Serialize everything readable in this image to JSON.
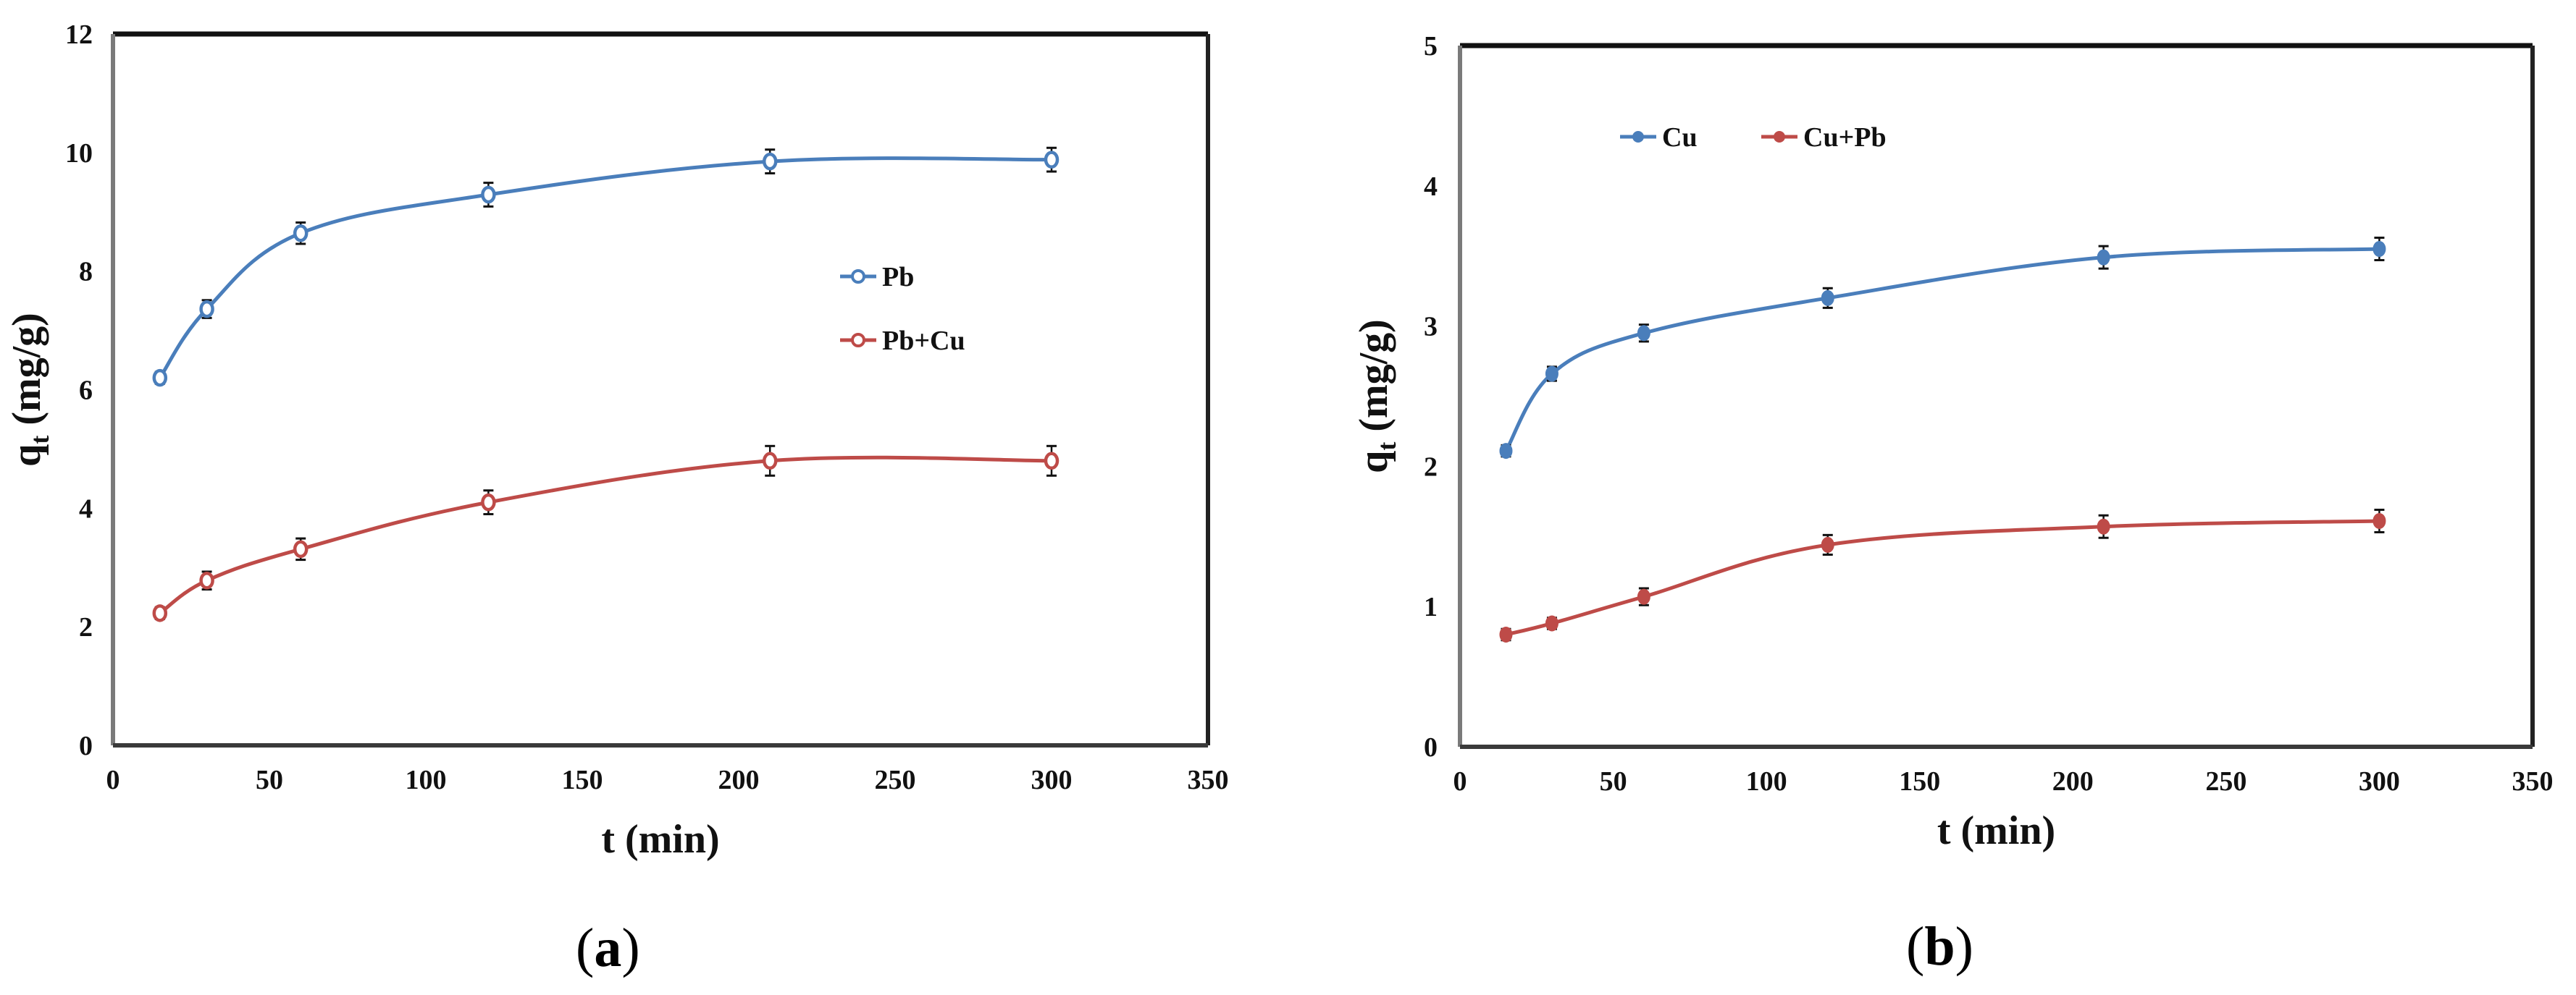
{
  "figure": {
    "captions": [
      {
        "open": "(",
        "letter": "a",
        "close": ")"
      },
      {
        "open": "(",
        "letter": "b",
        "close": ")"
      }
    ]
  },
  "chart_data": [
    {
      "id": "a",
      "type": "line",
      "title": "",
      "xlabel": "t (min)",
      "ylabel": "q_t (mg/g)",
      "ylabel_main": "q",
      "ylabel_sub": "t",
      "ylabel_unit": " (mg/g)",
      "xlim": [
        0,
        350
      ],
      "ylim": [
        0,
        12
      ],
      "xticks": [
        0,
        50,
        100,
        150,
        200,
        250,
        300,
        350
      ],
      "yticks": [
        0,
        2,
        4,
        6,
        8,
        10,
        12
      ],
      "grid": false,
      "legend_position": "inside-right-middle",
      "x": [
        15,
        30,
        60,
        120,
        210,
        300
      ],
      "series": [
        {
          "name": "Pb",
          "color": "#4a7ebb",
          "marker": "open-circle",
          "values": [
            6.2,
            7.36,
            8.64,
            9.29,
            9.85,
            9.88
          ],
          "error": [
            0.1,
            0.15,
            0.18,
            0.2,
            0.2,
            0.2
          ]
        },
        {
          "name": "Pb+Cu",
          "color": "#be4b48",
          "marker": "open-circle",
          "values": [
            2.23,
            2.78,
            3.31,
            4.1,
            4.8,
            4.8
          ],
          "error": [
            0.1,
            0.15,
            0.18,
            0.2,
            0.25,
            0.25
          ]
        }
      ]
    },
    {
      "id": "b",
      "type": "line",
      "title": "",
      "xlabel": "t (min)",
      "ylabel": "q_t (mg/g)",
      "ylabel_main": "q",
      "ylabel_sub": "t",
      "ylabel_unit": " (mg/g)",
      "xlim": [
        0,
        350
      ],
      "ylim": [
        0,
        5
      ],
      "xticks": [
        0,
        50,
        100,
        150,
        200,
        250,
        300,
        350
      ],
      "yticks": [
        0,
        1,
        2,
        3,
        4,
        5
      ],
      "grid": false,
      "legend_position": "inside-top-left",
      "x": [
        15,
        30,
        60,
        120,
        210,
        300
      ],
      "series": [
        {
          "name": "Cu",
          "color": "#4a7ebb",
          "marker": "filled-circle",
          "values": [
            2.11,
            2.66,
            2.95,
            3.2,
            3.49,
            3.55
          ],
          "error": [
            0.04,
            0.05,
            0.06,
            0.07,
            0.08,
            0.08
          ]
        },
        {
          "name": "Cu+Pb",
          "color": "#be4b48",
          "marker": "filled-circle",
          "values": [
            0.8,
            0.88,
            1.07,
            1.44,
            1.57,
            1.61
          ],
          "error": [
            0.04,
            0.04,
            0.06,
            0.07,
            0.08,
            0.08
          ]
        }
      ]
    }
  ]
}
